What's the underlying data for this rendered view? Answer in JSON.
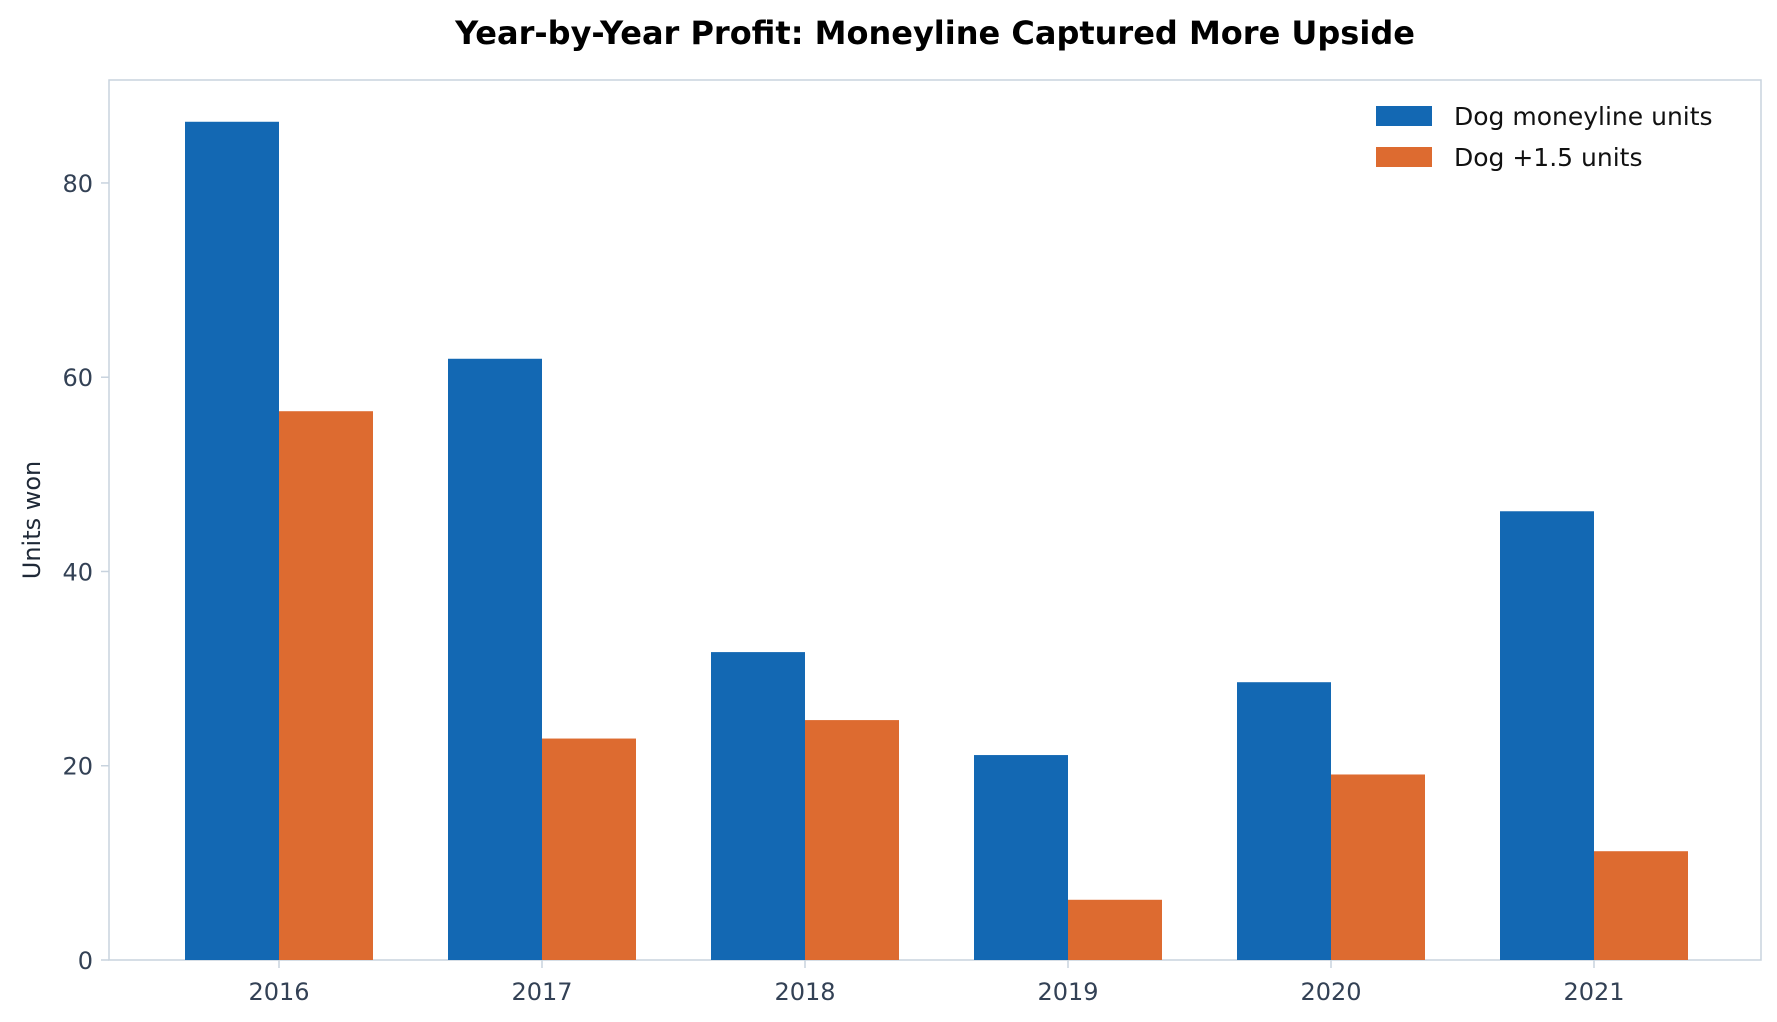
{
  "colors": {
    "series_1": "#1368b3",
    "series_2": "#dd6b30",
    "axis": "#c8d3de",
    "tick_text": "#334155"
  },
  "chart_data": {
    "type": "bar",
    "title": "Year-by-Year Profit: Moneyline Captured More Upside",
    "xlabel": "",
    "ylabel": "Units won",
    "categories": [
      "2016",
      "2017",
      "2018",
      "2019",
      "2020",
      "2021"
    ],
    "series": [
      {
        "name": "Dog moneyline units",
        "values": [
          86.3,
          61.9,
          31.7,
          21.1,
          28.6,
          46.2
        ]
      },
      {
        "name": "Dog +1.5 units",
        "values": [
          56.5,
          22.8,
          24.7,
          6.2,
          19.1,
          11.2
        ]
      }
    ],
    "ylim": [
      0,
      90.6
    ],
    "yticks": [
      0,
      20,
      40,
      60,
      80
    ],
    "grid": false,
    "legend_position": "top-right"
  }
}
